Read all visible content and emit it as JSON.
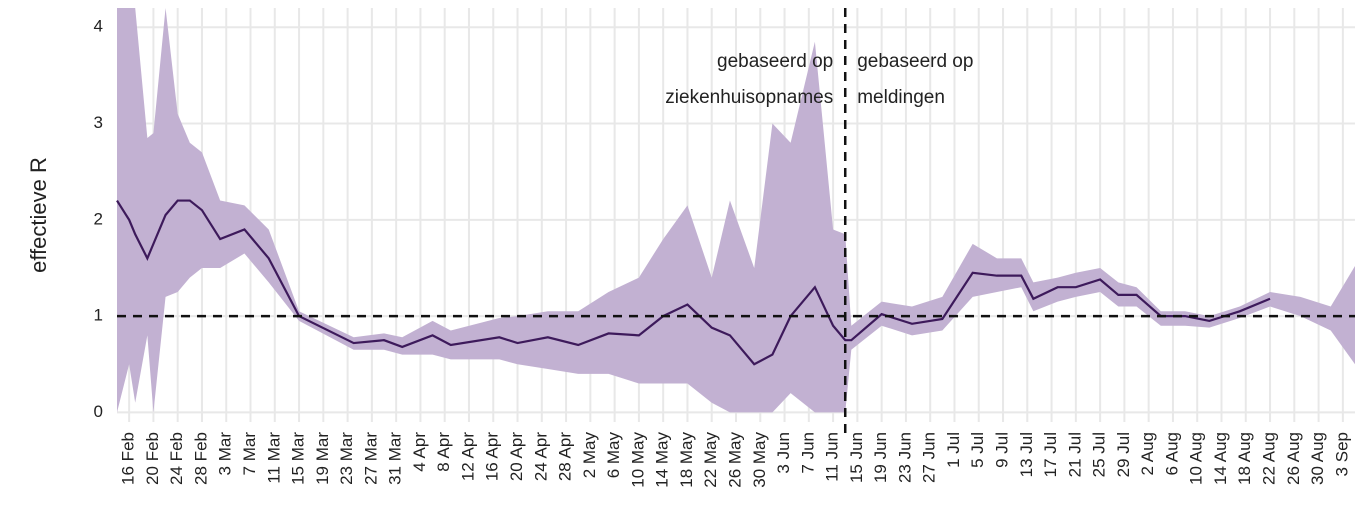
{
  "chart_data": {
    "type": "line-band",
    "y_label": "effectieve R",
    "x": [
      45,
      47,
      48,
      50,
      51,
      53,
      55,
      57,
      59,
      62,
      66,
      70,
      75,
      84,
      89,
      92,
      97,
      100,
      108,
      111,
      116,
      121,
      126,
      131,
      135,
      139,
      143,
      146,
      150,
      153,
      156,
      160,
      163,
      165,
      166,
      171,
      176,
      181,
      186,
      190,
      194,
      196,
      200,
      203,
      207,
      210,
      213,
      217,
      221,
      225,
      230,
      235,
      240,
      245,
      249
    ],
    "values": [
      2.2,
      2.0,
      1.85,
      1.6,
      1.75,
      2.05,
      2.2,
      2.2,
      2.1,
      1.8,
      1.9,
      1.6,
      1.0,
      0.72,
      0.75,
      0.68,
      0.8,
      0.7,
      0.78,
      0.72,
      0.78,
      0.7,
      0.82,
      0.8,
      1.0,
      1.12,
      0.88,
      0.8,
      0.5,
      0.6,
      1.0,
      1.3,
      0.9,
      0.75,
      0.75,
      1.02,
      0.92,
      0.97,
      1.45,
      1.42,
      1.42,
      1.18,
      1.3,
      1.3,
      1.38,
      1.22,
      1.22,
      1.0,
      1.0,
      0.95,
      1.05,
      1.18,
      null,
      null,
      null
    ],
    "lower": [
      0.0,
      0.5,
      0.1,
      0.8,
      0.0,
      1.2,
      1.25,
      1.4,
      1.5,
      1.5,
      1.65,
      1.35,
      0.95,
      0.65,
      0.65,
      0.6,
      0.6,
      0.55,
      0.55,
      0.5,
      0.45,
      0.4,
      0.4,
      0.3,
      0.3,
      0.3,
      0.1,
      0.0,
      0.0,
      0.0,
      0.2,
      0.0,
      0.0,
      0.0,
      0.65,
      0.9,
      0.8,
      0.85,
      1.2,
      1.25,
      1.3,
      1.05,
      1.15,
      1.2,
      1.25,
      1.1,
      1.1,
      0.9,
      0.9,
      0.88,
      0.98,
      1.1,
      1.0,
      0.85,
      0.5
    ],
    "upper": [
      4.2,
      4.2,
      4.2,
      2.85,
      2.9,
      4.2,
      3.1,
      2.8,
      2.7,
      2.2,
      2.15,
      1.9,
      1.05,
      0.78,
      0.82,
      0.78,
      0.95,
      0.85,
      0.98,
      1.0,
      1.05,
      1.05,
      1.25,
      1.4,
      1.8,
      2.15,
      1.4,
      2.2,
      1.5,
      3.0,
      2.8,
      3.85,
      1.9,
      1.85,
      0.9,
      1.15,
      1.1,
      1.2,
      1.75,
      1.6,
      1.6,
      1.35,
      1.4,
      1.45,
      1.5,
      1.35,
      1.3,
      1.05,
      1.05,
      1.0,
      1.1,
      1.25,
      1.2,
      1.1,
      1.52
    ],
    "line_color": "#3d1a5b",
    "band_color": "#c2b1d2",
    "hline": 1,
    "vline": 165,
    "annotations": [
      [
        "gebaseerd op",
        "ziekenhuisopnames"
      ],
      [
        "gebaseerd op",
        "meldingen"
      ]
    ],
    "xlim": [
      45,
      249
    ],
    "ylim": [
      -0.1,
      4.2
    ],
    "yticks": [
      0,
      1,
      2,
      3,
      4
    ],
    "grid": true,
    "xticks": [
      {
        "value": 47,
        "label": "16 Feb"
      },
      {
        "value": 51,
        "label": "20 Feb"
      },
      {
        "value": 55,
        "label": "24 Feb"
      },
      {
        "value": 59,
        "label": "28 Feb"
      },
      {
        "value": 63,
        "label": "3 Mar"
      },
      {
        "value": 67,
        "label": "7 Mar"
      },
      {
        "value": 71,
        "label": "11 Mar"
      },
      {
        "value": 75,
        "label": "15 Mar"
      },
      {
        "value": 79,
        "label": "19 Mar"
      },
      {
        "value": 83,
        "label": "23 Mar"
      },
      {
        "value": 87,
        "label": "27 Mar"
      },
      {
        "value": 91,
        "label": "31 Mar"
      },
      {
        "value": 95,
        "label": "4 Apr"
      },
      {
        "value": 99,
        "label": "8 Apr"
      },
      {
        "value": 103,
        "label": "12 Apr"
      },
      {
        "value": 107,
        "label": "16 Apr"
      },
      {
        "value": 111,
        "label": "20 Apr"
      },
      {
        "value": 115,
        "label": "24 Apr"
      },
      {
        "value": 119,
        "label": "28 Apr"
      },
      {
        "value": 123,
        "label": "2 May"
      },
      {
        "value": 127,
        "label": "6 May"
      },
      {
        "value": 131,
        "label": "10 May"
      },
      {
        "value": 135,
        "label": "14 May"
      },
      {
        "value": 139,
        "label": "18 May"
      },
      {
        "value": 143,
        "label": "22 May"
      },
      {
        "value": 147,
        "label": "26 May"
      },
      {
        "value": 151,
        "label": "30 May"
      },
      {
        "value": 155,
        "label": "3 Jun"
      },
      {
        "value": 159,
        "label": "7 Jun"
      },
      {
        "value": 163,
        "label": "11 Jun"
      },
      {
        "value": 167,
        "label": "15 Jun"
      },
      {
        "value": 171,
        "label": "19 Jun"
      },
      {
        "value": 175,
        "label": "23 Jun"
      },
      {
        "value": 179,
        "label": "27 Jun"
      },
      {
        "value": 183,
        "label": "1 Jul"
      },
      {
        "value": 187,
        "label": "5 Jul"
      },
      {
        "value": 191,
        "label": "9 Jul"
      },
      {
        "value": 195,
        "label": "13 Jul"
      },
      {
        "value": 199,
        "label": "17 Jul"
      },
      {
        "value": 203,
        "label": "21 Jul"
      },
      {
        "value": 207,
        "label": "25 Jul"
      },
      {
        "value": 211,
        "label": "29 Jul"
      },
      {
        "value": 215,
        "label": "2 Aug"
      },
      {
        "value": 219,
        "label": "6 Aug"
      },
      {
        "value": 223,
        "label": "10 Aug"
      },
      {
        "value": 227,
        "label": "14 Aug"
      },
      {
        "value": 231,
        "label": "18 Aug"
      },
      {
        "value": 235,
        "label": "22 Aug"
      },
      {
        "value": 239,
        "label": "26 Aug"
      },
      {
        "value": 243,
        "label": "30 Aug"
      },
      {
        "value": 247,
        "label": "3 Sep"
      }
    ]
  }
}
